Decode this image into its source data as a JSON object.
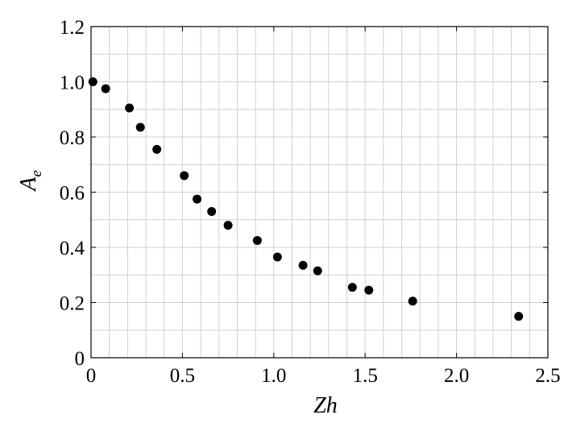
{
  "chart_data": {
    "type": "scatter",
    "title": "",
    "xlabel": "Zh",
    "ylabel": {
      "main": "A",
      "sub": "e"
    },
    "xlim": [
      0,
      2.5
    ],
    "ylim": [
      0,
      1.2
    ],
    "xticks": [
      {
        "value": 0,
        "label": "0"
      },
      {
        "value": 0.5,
        "label": "0.5"
      },
      {
        "value": 1.0,
        "label": "1.0"
      },
      {
        "value": 1.5,
        "label": "1.5"
      },
      {
        "value": 2.0,
        "label": "2.0"
      },
      {
        "value": 2.5,
        "label": "2.5"
      }
    ],
    "yticks": [
      {
        "value": 0,
        "label": "0"
      },
      {
        "value": 0.2,
        "label": "0.2"
      },
      {
        "value": 0.4,
        "label": "0.4"
      },
      {
        "value": 0.6,
        "label": "0.6"
      },
      {
        "value": 0.8,
        "label": "0.8"
      },
      {
        "value": 1.0,
        "label": "1.0"
      },
      {
        "value": 1.2,
        "label": "1.2"
      }
    ],
    "x_minor_step": 0.1,
    "y_minor_step": 0.1,
    "grid": true,
    "marker_color": "#000000",
    "points": [
      {
        "x": 0.01,
        "y": 1.0
      },
      {
        "x": 0.08,
        "y": 0.975
      },
      {
        "x": 0.21,
        "y": 0.905
      },
      {
        "x": 0.27,
        "y": 0.835
      },
      {
        "x": 0.36,
        "y": 0.755
      },
      {
        "x": 0.51,
        "y": 0.66
      },
      {
        "x": 0.58,
        "y": 0.575
      },
      {
        "x": 0.66,
        "y": 0.53
      },
      {
        "x": 0.75,
        "y": 0.48
      },
      {
        "x": 0.91,
        "y": 0.425
      },
      {
        "x": 1.02,
        "y": 0.365
      },
      {
        "x": 1.16,
        "y": 0.335
      },
      {
        "x": 1.24,
        "y": 0.315
      },
      {
        "x": 1.43,
        "y": 0.255
      },
      {
        "x": 1.52,
        "y": 0.245
      },
      {
        "x": 1.76,
        "y": 0.205
      },
      {
        "x": 2.34,
        "y": 0.15
      }
    ]
  }
}
